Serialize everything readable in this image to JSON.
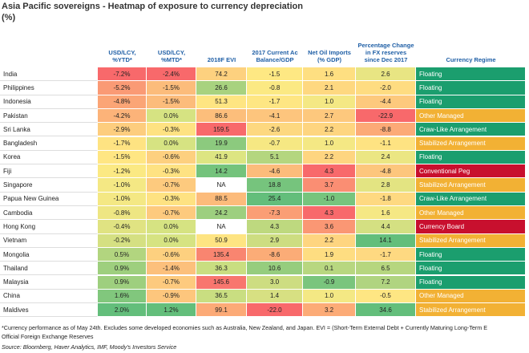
{
  "header": {
    "title": "Asia Pacific sovereigns - Heatmap of exposure to currency depreciation",
    "subtitle": "(%)"
  },
  "table": {
    "columns": [
      "USD/LCY, %YTD*",
      "USD/LCY, %MTD*",
      "2018F EVI",
      "2017 Current Ac Balance/GDP",
      "Net Oil Imports (% GDP)",
      "Percentage Change in FX reserves since Dec 2017",
      "Currency Regime"
    ],
    "rows": [
      {
        "country": "India",
        "cells": [
          "-7.2%",
          "-2.4%",
          "74.2",
          "-1.5",
          "1.6",
          "2.6"
        ],
        "colors": [
          "#f8696b",
          "#f8696b",
          "#fdd17f",
          "#fee883",
          "#fedf81",
          "#e8e583"
        ],
        "regime": "Floating",
        "regime_color": "#1b9e6e"
      },
      {
        "country": "Philippines",
        "cells": [
          "-5.2%",
          "-1.5%",
          "26.6",
          "-0.8",
          "2.1",
          "-2.0"
        ],
        "colors": [
          "#fa9a75",
          "#fcbc7b",
          "#a8d27f",
          "#fbe983",
          "#fed880",
          "#fedc81"
        ],
        "regime": "Floating",
        "regime_color": "#1b9e6e"
      },
      {
        "country": "Indonesia",
        "cells": [
          "-4.8%",
          "-1.5%",
          "51.3",
          "-1.7",
          "1.0",
          "-4.4"
        ],
        "colors": [
          "#fba576",
          "#fcbc7b",
          "#fee582",
          "#fee683",
          "#f4e884",
          "#fdc97d"
        ],
        "regime": "Floating",
        "regime_color": "#1b9e6e"
      },
      {
        "country": "Pakistan",
        "cells": [
          "-4.2%",
          "0.0%",
          "86.6",
          "-4.1",
          "2.7",
          "-22.9"
        ],
        "colors": [
          "#fcb379",
          "#d6e382",
          "#fcbe7b",
          "#fdc57d",
          "#fdc87d",
          "#f8696b"
        ],
        "regime": "Other Managed",
        "regime_color": "#f2b134"
      },
      {
        "country": "Sri Lanka",
        "cells": [
          "-2.9%",
          "-0.3%",
          "159.5",
          "-2.6",
          "2.2",
          "-8.8"
        ],
        "colors": [
          "#fdcd7e",
          "#fee282",
          "#f8696b",
          "#fdd880",
          "#fed580",
          "#fcaa77"
        ],
        "regime": "Craw-Like Arrangement",
        "regime_color": "#1b9e6e"
      },
      {
        "country": "Bangladesh",
        "cells": [
          "-1.7%",
          "0.0%",
          "19.9",
          "-0.7",
          "1.0",
          "-1.1"
        ],
        "colors": [
          "#fee382",
          "#d6e382",
          "#8cca7e",
          "#f6e883",
          "#f4e884",
          "#fee382"
        ],
        "regime": "Stabilized Arrangement",
        "regime_color": "#f2b134"
      },
      {
        "country": "Korea",
        "cells": [
          "-1.5%",
          "-0.6%",
          "41.9",
          "5.1",
          "2.2",
          "2.4"
        ],
        "colors": [
          "#ffe683",
          "#fdd07f",
          "#dde582",
          "#b4d67f",
          "#fed580",
          "#ebe683"
        ],
        "regime": "Floating",
        "regime_color": "#1b9e6e"
      },
      {
        "country": "Fiji",
        "cells": [
          "-1.2%",
          "-0.3%",
          "14.2",
          "-4.6",
          "4.3",
          "-4.8"
        ],
        "colors": [
          "#fbe983",
          "#fee282",
          "#74c37c",
          "#fcbc7b",
          "#f8696b",
          "#fdc67d"
        ],
        "regime": "Conventional Peg",
        "regime_color": "#c8102e"
      },
      {
        "country": "Singapore",
        "cells": [
          "-1.0%",
          "-0.7%",
          "NA",
          "18.8",
          "3.7",
          "2.8"
        ],
        "colors": [
          "#f4e884",
          "#fdca7e",
          "#ffffff",
          "#76c47d",
          "#fa8e73",
          "#e3e482"
        ],
        "regime": "Stabilized Arrangement",
        "regime_color": "#f2b134"
      },
      {
        "country": "Papua New Guinea",
        "cells": [
          "-1.0%",
          "-0.3%",
          "88.5",
          "25.4",
          "-1.0",
          "-1.8"
        ],
        "colors": [
          "#f4e884",
          "#fee282",
          "#fcbb7b",
          "#63be7b",
          "#77c47d",
          "#fed981"
        ],
        "regime": "Craw-Like Arrangement",
        "regime_color": "#1b9e6e"
      },
      {
        "country": "Cambodia",
        "cells": [
          "-0.8%",
          "-0.7%",
          "24.2",
          "-7.3",
          "4.3",
          "1.6"
        ],
        "colors": [
          "#eee683",
          "#fdca7e",
          "#9dcf7f",
          "#fa9e75",
          "#f8696b",
          "#f5e884"
        ],
        "regime": "Other Managed",
        "regime_color": "#f2b134"
      },
      {
        "country": "Hong Kong",
        "cells": [
          "-0.4%",
          "0.0%",
          "NA",
          "4.3",
          "3.6",
          "4.4"
        ],
        "colors": [
          "#e0e382",
          "#d6e382",
          "#ffffff",
          "#bed97f",
          "#fa9774",
          "#d4e082"
        ],
        "regime": "Currency Board",
        "regime_color": "#c8102e"
      },
      {
        "country": "Vietnam",
        "cells": [
          "-0.2%",
          "0.0%",
          "50.9",
          "2.9",
          "2.2",
          "14.1"
        ],
        "colors": [
          "#d5e082",
          "#d6e382",
          "#fee482",
          "#cddd81",
          "#fed580",
          "#63be7b"
        ],
        "regime": "Stabilized Arrangement",
        "regime_color": "#f2b134"
      },
      {
        "country": "Mongolia",
        "cells": [
          "0.5%",
          "-0.6%",
          "135.4",
          "-8.6",
          "1.9",
          "-1.7"
        ],
        "colors": [
          "#b2d57f",
          "#fdd07f",
          "#f98570",
          "#fbac77",
          "#fedd81",
          "#fed981"
        ],
        "regime": "Floating",
        "regime_color": "#1b9e6e"
      },
      {
        "country": "Thailand",
        "cells": [
          "0.9%",
          "-1.4%",
          "36.3",
          "10.6",
          "0.1",
          "6.5"
        ],
        "colors": [
          "#9ecf7e",
          "#fcc07c",
          "#c9de81",
          "#96cd7e",
          "#b8d780",
          "#b6d67f"
        ],
        "regime": "Floating",
        "regime_color": "#1b9e6e"
      },
      {
        "country": "Malaysia",
        "cells": [
          "0.9%",
          "-0.7%",
          "145.6",
          "3.0",
          "-0.9",
          "7.2"
        ],
        "colors": [
          "#9ecf7e",
          "#fdca7e",
          "#f8766e",
          "#cddd81",
          "#7ac57d",
          "#b0d480"
        ],
        "regime": "Floating",
        "regime_color": "#1b9e6e"
      },
      {
        "country": "China",
        "cells": [
          "1.6%",
          "-0.9%",
          "36.5",
          "1.4",
          "1.0",
          "-0.5"
        ],
        "colors": [
          "#81c77d",
          "#fdc67d",
          "#c9de81",
          "#d7e082",
          "#f4e884",
          "#fee683"
        ],
        "regime": "Other Managed",
        "regime_color": "#f2b134"
      },
      {
        "country": "Maldives",
        "cells": [
          "2.0%",
          "1.2%",
          "99.1",
          "-22.0",
          "3.2",
          "34.6"
        ],
        "colors": [
          "#63be7b",
          "#63be7b",
          "#fcaa77",
          "#f8696b",
          "#fcab77",
          "#63be7b"
        ],
        "regime": "Stabilized Arrangement",
        "regime_color": "#f2b134"
      }
    ]
  },
  "footnote": {
    "line1": "*Currency performance as of May 24th. Excludes some developed economies such as Australia, New Zealand, and Japan. EVI = (Short-Term External Debt + Currently Maturing Long-Term E",
    "line2": "Official Foreign Exchange Reserves",
    "source": "Source: Bloomberg, Haver Analytics, IMF, Moody's Investors Service"
  }
}
